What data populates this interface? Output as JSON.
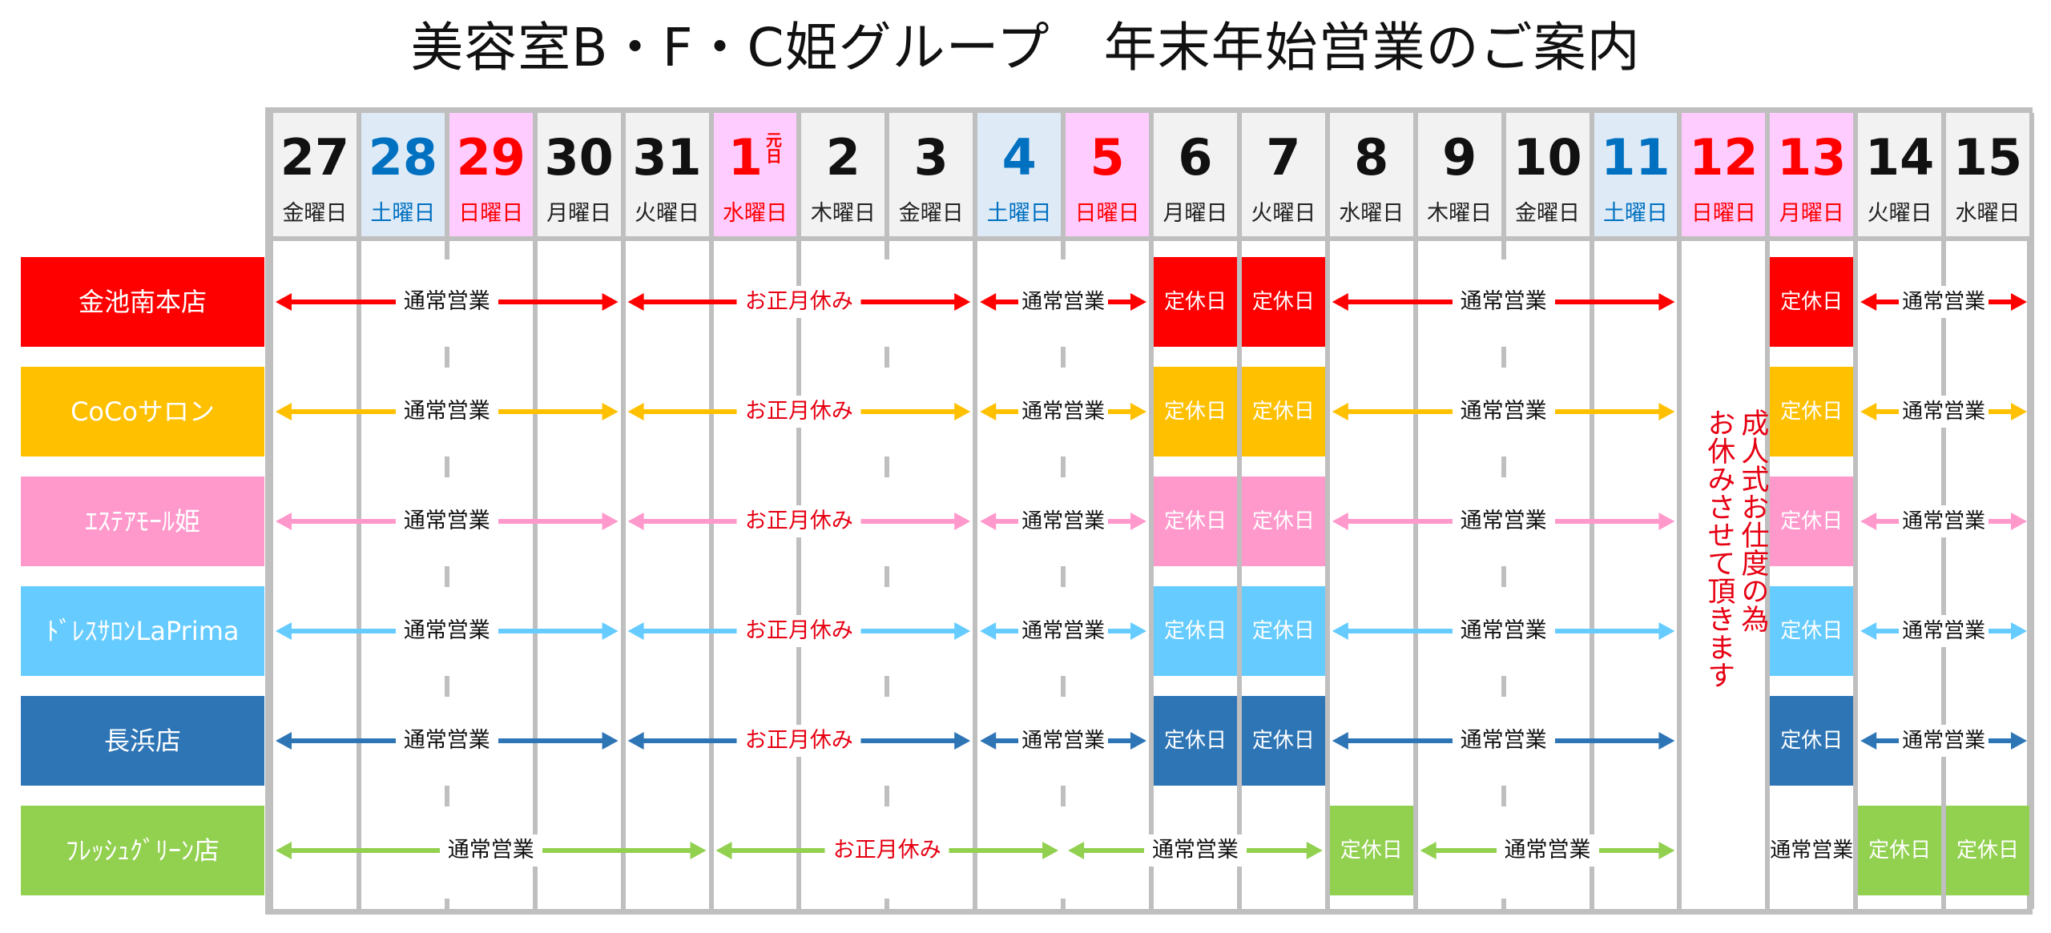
{
  "title": "美容室B・F・C姫グループ　年末年始営業のご案内",
  "colors": {
    "weekday_bg": "#f2f2f2",
    "saturday_bg": "#deebf7",
    "holiday_bg": "#ffccff",
    "saturday_text": "#0070c0",
    "holiday_text": "#ff0000",
    "closure_text": "#e60012",
    "grid": "#bfbfbf"
  },
  "days": [
    {
      "num": "27",
      "dow": "金曜日",
      "type": "weekday"
    },
    {
      "num": "28",
      "dow": "土曜日",
      "type": "saturday"
    },
    {
      "num": "29",
      "dow": "日曜日",
      "type": "holiday"
    },
    {
      "num": "30",
      "dow": "月曜日",
      "type": "weekday"
    },
    {
      "num": "31",
      "dow": "火曜日",
      "type": "weekday"
    },
    {
      "num": "1",
      "sup": "元日",
      "dow": "水曜日",
      "type": "holiday"
    },
    {
      "num": "2",
      "dow": "木曜日",
      "type": "weekday"
    },
    {
      "num": "3",
      "dow": "金曜日",
      "type": "weekday"
    },
    {
      "num": "4",
      "dow": "土曜日",
      "type": "saturday"
    },
    {
      "num": "5",
      "dow": "日曜日",
      "type": "holiday"
    },
    {
      "num": "6",
      "dow": "月曜日",
      "type": "weekday"
    },
    {
      "num": "7",
      "dow": "火曜日",
      "type": "weekday"
    },
    {
      "num": "8",
      "dow": "水曜日",
      "type": "weekday"
    },
    {
      "num": "9",
      "dow": "木曜日",
      "type": "weekday"
    },
    {
      "num": "10",
      "dow": "金曜日",
      "type": "weekday"
    },
    {
      "num": "11",
      "dow": "土曜日",
      "type": "saturday"
    },
    {
      "num": "12",
      "dow": "日曜日",
      "type": "holiday"
    },
    {
      "num": "13",
      "dow": "月曜日",
      "type": "holiday"
    },
    {
      "num": "14",
      "dow": "火曜日",
      "type": "weekday"
    },
    {
      "num": "15",
      "dow": "水曜日",
      "type": "weekday"
    }
  ],
  "labels": {
    "open": "通常営業",
    "new_year": "お正月休み",
    "closed": "定休日"
  },
  "coming_of_age_note": "成人式お仕度の為\nお休みさせて頂きます",
  "stores": [
    {
      "name": "金池南本店",
      "color": "#ff0000",
      "segments": [
        {
          "from": 0,
          "to": 3,
          "kind": "open"
        },
        {
          "from": 4,
          "to": 7,
          "kind": "new_year"
        },
        {
          "from": 8,
          "to": 9,
          "kind": "open"
        },
        {
          "from": 10,
          "to": 10,
          "kind": "closed"
        },
        {
          "from": 11,
          "to": 11,
          "kind": "closed"
        },
        {
          "from": 12,
          "to": 15,
          "kind": "open"
        },
        {
          "from": 17,
          "to": 17,
          "kind": "closed"
        },
        {
          "from": 18,
          "to": 19,
          "kind": "open"
        }
      ]
    },
    {
      "name": "CoCoサロン",
      "color": "#ffc000",
      "segments": [
        {
          "from": 0,
          "to": 3,
          "kind": "open"
        },
        {
          "from": 4,
          "to": 7,
          "kind": "new_year"
        },
        {
          "from": 8,
          "to": 9,
          "kind": "open"
        },
        {
          "from": 10,
          "to": 10,
          "kind": "closed"
        },
        {
          "from": 11,
          "to": 11,
          "kind": "closed"
        },
        {
          "from": 12,
          "to": 15,
          "kind": "open"
        },
        {
          "from": 17,
          "to": 17,
          "kind": "closed"
        },
        {
          "from": 18,
          "to": 19,
          "kind": "open"
        }
      ]
    },
    {
      "name": "ｴｽﾃｱﾓｰﾙ姫",
      "color": "#ff99cc",
      "segments": [
        {
          "from": 0,
          "to": 3,
          "kind": "open"
        },
        {
          "from": 4,
          "to": 7,
          "kind": "new_year"
        },
        {
          "from": 8,
          "to": 9,
          "kind": "open"
        },
        {
          "from": 10,
          "to": 10,
          "kind": "closed"
        },
        {
          "from": 11,
          "to": 11,
          "kind": "closed"
        },
        {
          "from": 12,
          "to": 15,
          "kind": "open"
        },
        {
          "from": 17,
          "to": 17,
          "kind": "closed"
        },
        {
          "from": 18,
          "to": 19,
          "kind": "open"
        }
      ]
    },
    {
      "name": "ﾄﾞﾚｽｻﾛﾝLaPrima",
      "color": "#66ccff",
      "segments": [
        {
          "from": 0,
          "to": 3,
          "kind": "open"
        },
        {
          "from": 4,
          "to": 7,
          "kind": "new_year"
        },
        {
          "from": 8,
          "to": 9,
          "kind": "open"
        },
        {
          "from": 10,
          "to": 10,
          "kind": "closed"
        },
        {
          "from": 11,
          "to": 11,
          "kind": "closed"
        },
        {
          "from": 12,
          "to": 15,
          "kind": "open"
        },
        {
          "from": 17,
          "to": 17,
          "kind": "closed"
        },
        {
          "from": 18,
          "to": 19,
          "kind": "open"
        }
      ]
    },
    {
      "name": "長浜店",
      "color": "#2e75b6",
      "segments": [
        {
          "from": 0,
          "to": 3,
          "kind": "open"
        },
        {
          "from": 4,
          "to": 7,
          "kind": "new_year"
        },
        {
          "from": 8,
          "to": 9,
          "kind": "open"
        },
        {
          "from": 10,
          "to": 10,
          "kind": "closed"
        },
        {
          "from": 11,
          "to": 11,
          "kind": "closed"
        },
        {
          "from": 12,
          "to": 15,
          "kind": "open"
        },
        {
          "from": 17,
          "to": 17,
          "kind": "closed"
        },
        {
          "from": 18,
          "to": 19,
          "kind": "open"
        }
      ]
    },
    {
      "name": "ﾌﾚｯｼｭｸﾞﾘｰﾝ店",
      "color": "#92d050",
      "segments": [
        {
          "from": 0,
          "to": 4,
          "kind": "open"
        },
        {
          "from": 5,
          "to": 8,
          "kind": "new_year"
        },
        {
          "from": 9,
          "to": 11,
          "kind": "open"
        },
        {
          "from": 12,
          "to": 12,
          "kind": "closed"
        },
        {
          "from": 13,
          "to": 15,
          "kind": "open"
        },
        {
          "from": 17,
          "to": 17,
          "kind": "open_plain"
        },
        {
          "from": 18,
          "to": 18,
          "kind": "closed"
        },
        {
          "from": 19,
          "to": 19,
          "kind": "closed"
        }
      ]
    }
  ]
}
